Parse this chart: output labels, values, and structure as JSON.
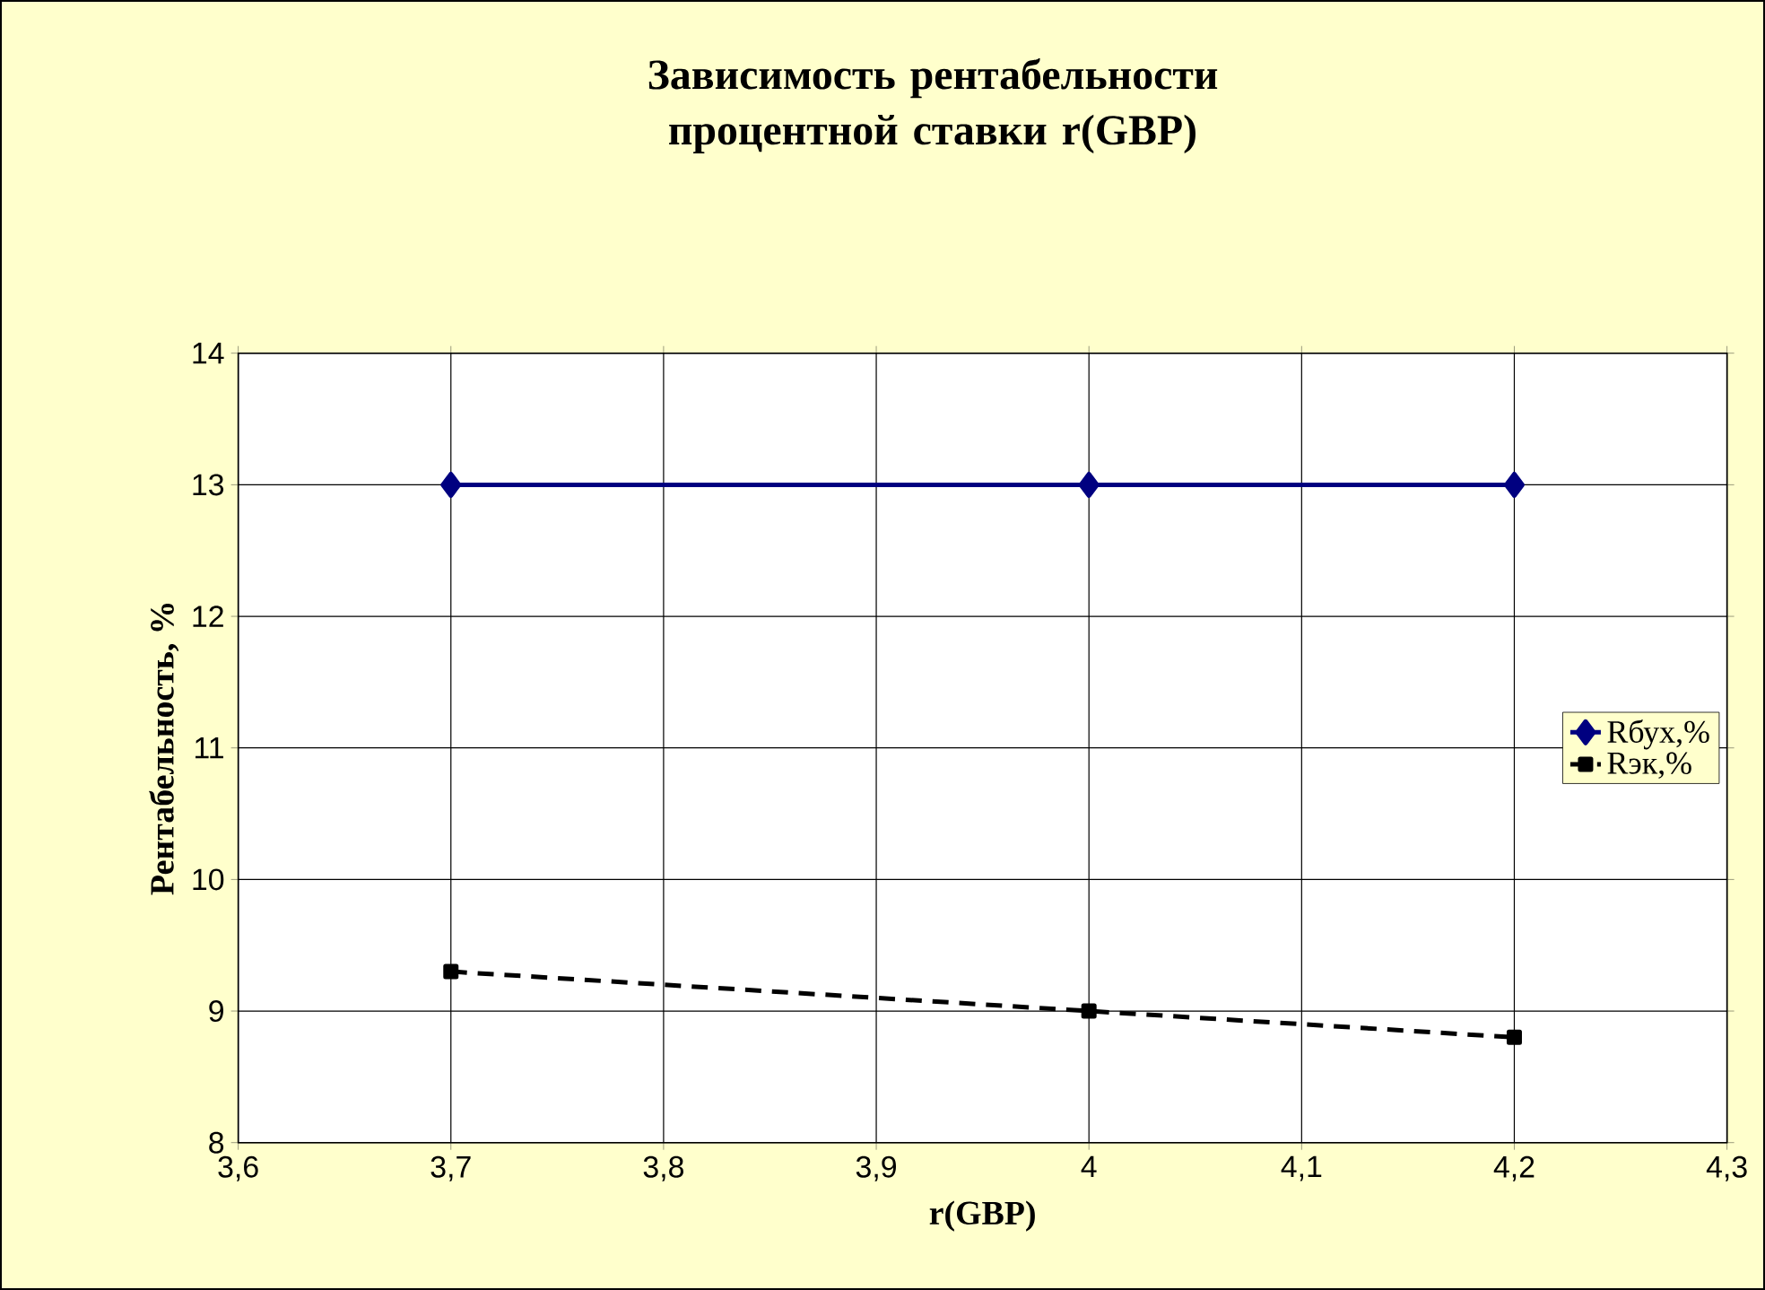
{
  "chart_data": {
    "type": "line",
    "title": "Зависимость рентабельности процентной ставки r(GBP)",
    "xlabel": "r(GBP)",
    "ylabel": "Рентабельность, %",
    "x": [
      3.7,
      4.0,
      4.2
    ],
    "series": [
      {
        "name": "Rбух,%",
        "color": "#000080",
        "values": [
          13,
          13,
          13
        ],
        "marker": "diamond",
        "line_style": "solid"
      },
      {
        "name": "Rэк,%",
        "color": "#000000",
        "values": [
          9.3,
          9.0,
          8.8
        ],
        "marker": "square",
        "line_style": "dashed"
      }
    ],
    "xlim": [
      3.6,
      4.3
    ],
    "xticks": [
      {
        "value": 3.6,
        "label": "3,6"
      },
      {
        "value": 3.7,
        "label": "3,7"
      },
      {
        "value": 3.8,
        "label": "3,8"
      },
      {
        "value": 3.9,
        "label": "3,9"
      },
      {
        "value": 4,
        "label": "4"
      },
      {
        "value": 4.1,
        "label": "4,1"
      },
      {
        "value": 4.2,
        "label": "4,2"
      },
      {
        "value": 4.3,
        "label": "4,3"
      }
    ],
    "ylim": [
      8,
      14
    ],
    "yticks": [
      8,
      9,
      10,
      11,
      12,
      13,
      14
    ],
    "grid": true,
    "legend": "right"
  }
}
